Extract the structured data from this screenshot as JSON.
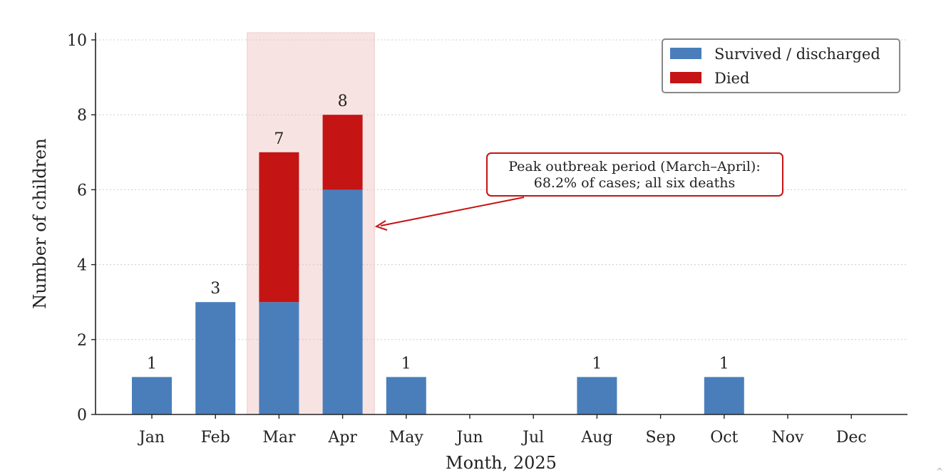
{
  "chart_data": {
    "type": "bar",
    "stacked": true,
    "xlabel": "Month, 2025",
    "ylabel": "Number of children",
    "ylim": [
      0,
      10
    ],
    "yticks": [
      0,
      2,
      4,
      6,
      8,
      10
    ],
    "grid": "horizontal dotted",
    "legend_position": "top-right",
    "categories": [
      "Jan",
      "Feb",
      "Mar",
      "Apr",
      "May",
      "Jun",
      "Jul",
      "Aug",
      "Sep",
      "Oct",
      "Nov",
      "Dec"
    ],
    "series": [
      {
        "name": "Survived / discharged",
        "color": "#4a7ebb",
        "values": [
          1,
          3,
          3,
          6,
          1,
          0,
          0,
          1,
          0,
          1,
          0,
          0
        ]
      },
      {
        "name": "Died",
        "color": "#c41414",
        "values": [
          0,
          0,
          4,
          2,
          0,
          0,
          0,
          0,
          0,
          0,
          0,
          0
        ]
      }
    ],
    "totals": [
      1,
      3,
      7,
      8,
      1,
      0,
      0,
      1,
      0,
      1,
      0,
      0
    ],
    "highlight": {
      "from": "Mar",
      "to": "Apr",
      "color": "#f8e3e3"
    },
    "annotation": {
      "lines": [
        "Peak outbreak period (March–April):",
        "68.2% of cases; all six deaths"
      ],
      "color": "#c41414"
    }
  },
  "corner_mark": "^"
}
